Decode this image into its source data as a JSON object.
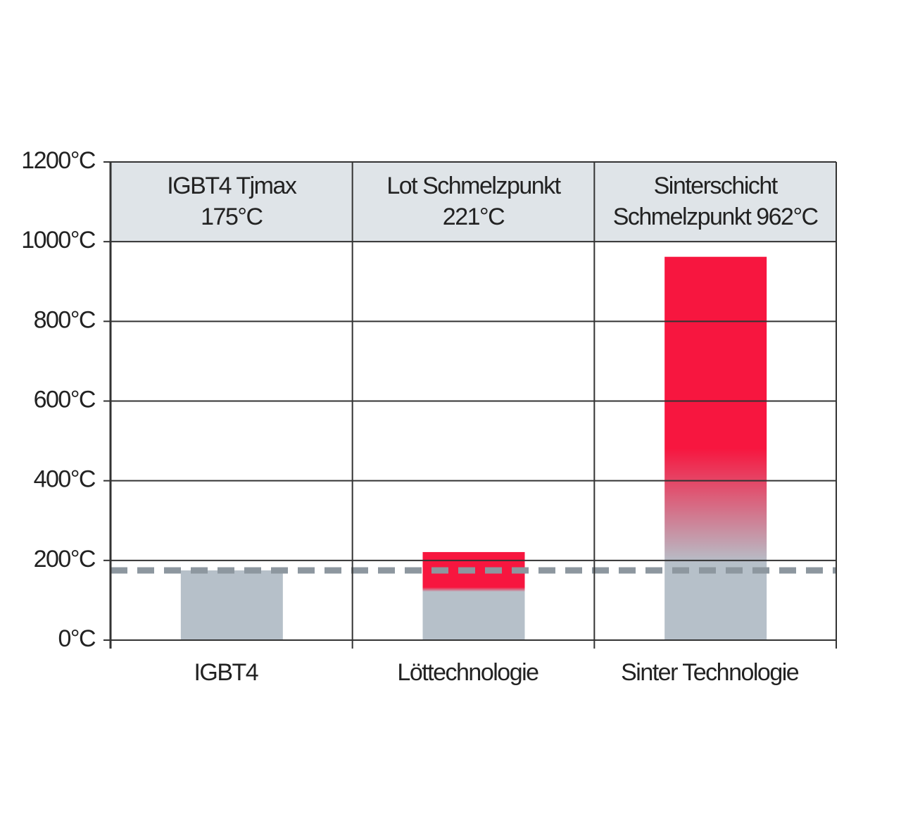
{
  "chart_data": {
    "type": "bar",
    "categories": [
      "IGBT4",
      "Löttechnologie",
      "Sinter Technologie"
    ],
    "values": [
      175,
      221,
      962
    ],
    "header_labels": [
      [
        "IGBT4 Tjmax",
        "175°C"
      ],
      [
        "Lot Schmelzpunkt",
        "221°C"
      ],
      [
        "Sinterschicht",
        "Schmelzpunkt 962°C"
      ]
    ],
    "ylim": [
      0,
      1200
    ],
    "yticks": [
      {
        "value": 0,
        "label": "0°C"
      },
      {
        "value": 200,
        "label": "200°C"
      },
      {
        "value": 400,
        "label": "400°C"
      },
      {
        "value": 600,
        "label": "600°C"
      },
      {
        "value": 800,
        "label": "800°C"
      },
      {
        "value": 1000,
        "label": "1000°C"
      },
      {
        "value": 1200,
        "label": "1200°C"
      }
    ],
    "threshold": 175,
    "grid": true,
    "color": "#b6c0c9",
    "hot_color": "#f7163f",
    "header_color": "#dfe4e8",
    "threshold_color": "#8d979f"
  }
}
